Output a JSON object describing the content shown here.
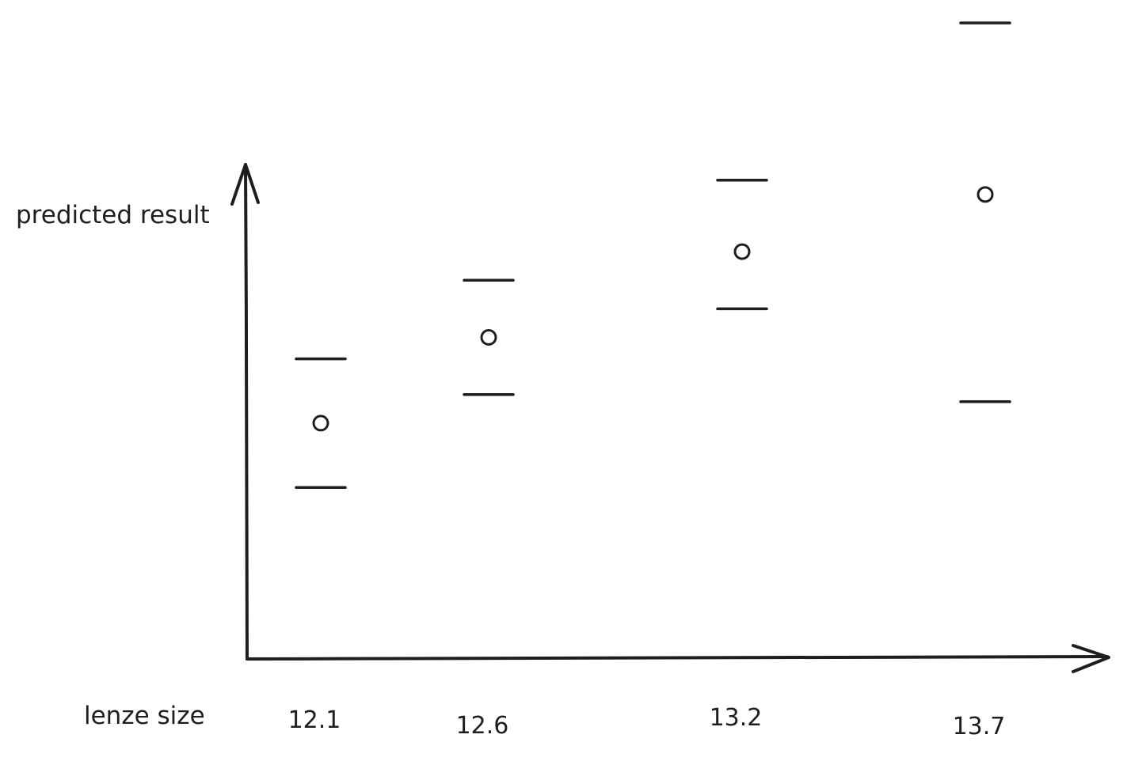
{
  "chart_data": {
    "type": "scatter",
    "title": "",
    "xlabel": "lenze size",
    "ylabel": "predicted result",
    "categories": [
      "12.1",
      "12.6",
      "13.2",
      "13.7"
    ],
    "series": [
      {
        "values": [
          1.65,
          2.25,
          2.85,
          3.25
        ]
      }
    ],
    "intervals": [
      {
        "lower": 1.2,
        "upper": 2.1
      },
      {
        "lower": 1.85,
        "upper": 2.65
      },
      {
        "lower": 2.45,
        "upper": 3.35
      },
      {
        "lower": 1.8,
        "upper": 4.45
      }
    ],
    "ylim": [
      0,
      4.5
    ],
    "grid": false,
    "legend": "none",
    "colors": {
      "ink": "#1e1e1e",
      "background": "#ffffff"
    }
  }
}
